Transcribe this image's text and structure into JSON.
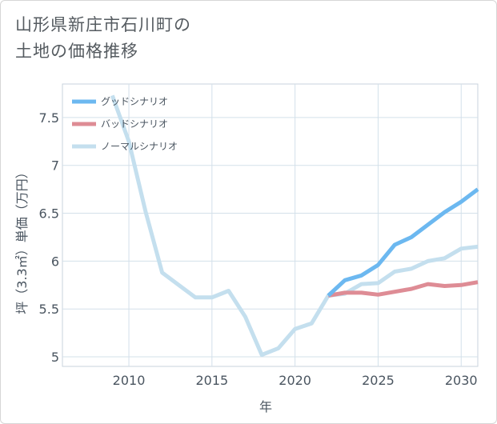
{
  "page": {
    "title_line1": "山形県新庄市石川町の",
    "title_line2": "土地の価格推移"
  },
  "chart_data": {
    "type": "line",
    "xlabel": "年",
    "ylabel": "坪（3.3㎡）単価（万円）",
    "xlim": [
      2006,
      2031
    ],
    "ylim": [
      4.9,
      7.85
    ],
    "xticks": [
      2010,
      2015,
      2020,
      2025,
      2030
    ],
    "yticks": [
      5,
      5.5,
      6,
      6.5,
      7,
      7.5
    ],
    "ytick_labels": [
      "5",
      "5.5",
      "6",
      "6.5",
      "7",
      "7.5"
    ],
    "grid": true,
    "legend_position": "top-left",
    "series": [
      {
        "name": "グッドシナリオ",
        "color": "#6cb8f0",
        "x": [
          2022,
          2023,
          2024,
          2025,
          2026,
          2027,
          2028,
          2029,
          2030,
          2031
        ],
        "y": [
          5.64,
          5.8,
          5.85,
          5.96,
          6.17,
          6.25,
          6.38,
          6.51,
          6.62,
          6.75
        ]
      },
      {
        "name": "バッドシナリオ",
        "color": "#de8c95",
        "x": [
          2022,
          2023,
          2024,
          2025,
          2026,
          2027,
          2028,
          2029,
          2030,
          2031
        ],
        "y": [
          5.64,
          5.67,
          5.67,
          5.65,
          5.68,
          5.71,
          5.76,
          5.74,
          5.75,
          5.78
        ]
      },
      {
        "name": "ノーマルシナリオ",
        "color": "#c4dfee",
        "x": [
          2009,
          2010,
          2011,
          2012,
          2013,
          2014,
          2015,
          2016,
          2017,
          2018,
          2019,
          2020,
          2021,
          2022,
          2023,
          2024,
          2025,
          2026,
          2027,
          2028,
          2029,
          2030,
          2031
        ],
        "y": [
          7.73,
          7.25,
          6.52,
          5.88,
          5.75,
          5.62,
          5.62,
          5.69,
          5.42,
          5.02,
          5.09,
          5.29,
          5.35,
          5.64,
          5.66,
          5.76,
          5.77,
          5.89,
          5.92,
          6.0,
          6.03,
          6.13,
          6.15
        ]
      }
    ]
  }
}
